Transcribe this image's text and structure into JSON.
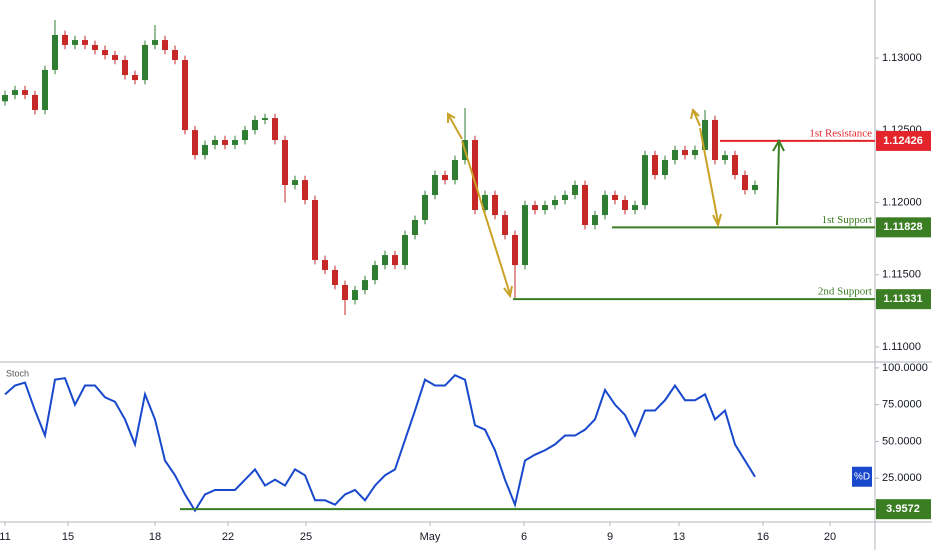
{
  "chart_data": [
    {
      "type": "candlestick",
      "xlim": [
        -0.5,
        87
      ],
      "ylim": [
        1.1091,
        1.13401
      ],
      "yticks": [
        {
          "value": 1.11,
          "label": "1.11000"
        },
        {
          "value": 1.115,
          "label": "1.11500"
        },
        {
          "value": 1.12,
          "label": "1.12000"
        },
        {
          "value": 1.125,
          "label": "1.12500"
        },
        {
          "value": 1.13,
          "label": "1.13000"
        }
      ],
      "up_color": "#2e7d32",
      "down_color": "#c62828",
      "open": [
        1.127,
        1.12744,
        1.12778,
        1.12744,
        1.1264,
        1.12917,
        1.13159,
        1.1309,
        1.13124,
        1.1309,
        1.13055,
        1.1302,
        1.12986,
        1.12882,
        1.12847,
        1.1309,
        1.13124,
        1.13055,
        1.12986,
        1.12501,
        1.12328,
        1.12398,
        1.12432,
        1.12398,
        1.12432,
        1.12501,
        1.12571,
        1.12584,
        1.12432,
        1.12121,
        1.12155,
        1.12017,
        1.11602,
        1.11533,
        1.11429,
        1.11325,
        1.11394,
        1.11463,
        1.11567,
        1.11636,
        1.11567,
        1.11775,
        1.11879,
        1.12052,
        1.1219,
        1.12155,
        1.12294,
        1.12432,
        1.11948,
        1.12052,
        1.11913,
        1.11775,
        1.11567,
        1.11982,
        1.11948,
        1.11982,
        1.12017,
        1.12052,
        1.12121,
        1.11844,
        1.11913,
        1.12052,
        1.12017,
        1.11948,
        1.11982,
        1.12328,
        1.1219,
        1.12294,
        1.12363,
        1.12328,
        1.12363,
        1.12571,
        1.12294,
        1.12328,
        1.1219,
        1.12086
      ],
      "high": [
        1.12774,
        1.12808,
        1.12808,
        1.12774,
        1.12947,
        1.13263,
        1.13189,
        1.13154,
        1.13154,
        1.1312,
        1.13085,
        1.1305,
        1.13016,
        1.12912,
        1.1312,
        1.13228,
        1.13154,
        1.13085,
        1.13016,
        1.12531,
        1.12428,
        1.12462,
        1.12462,
        1.12462,
        1.12531,
        1.12601,
        1.12614,
        1.12614,
        1.12462,
        1.12185,
        1.12185,
        1.12047,
        1.11632,
        1.11563,
        1.11459,
        1.11424,
        1.11493,
        1.11597,
        1.11666,
        1.11666,
        1.11805,
        1.11909,
        1.12082,
        1.1222,
        1.1222,
        1.12324,
        1.12654,
        1.12462,
        1.12082,
        1.12082,
        1.11943,
        1.11805,
        1.12012,
        1.12012,
        1.12012,
        1.12047,
        1.12082,
        1.12151,
        1.12151,
        1.11943,
        1.12082,
        1.12082,
        1.12047,
        1.12012,
        1.12358,
        1.12358,
        1.12324,
        1.12393,
        1.12393,
        1.12393,
        1.1264,
        1.12601,
        1.12358,
        1.12358,
        1.1222,
        1.12151
      ],
      "low": [
        1.1267,
        1.12714,
        1.12714,
        1.1261,
        1.1261,
        1.12887,
        1.1306,
        1.1306,
        1.1306,
        1.13025,
        1.1299,
        1.12956,
        1.12852,
        1.12817,
        1.12817,
        1.1306,
        1.13025,
        1.12956,
        1.12471,
        1.12298,
        1.12298,
        1.12368,
        1.12368,
        1.12368,
        1.12402,
        1.12471,
        1.12541,
        1.12402,
        1.12,
        1.12091,
        1.11987,
        1.11572,
        1.11503,
        1.11399,
        1.11221,
        1.11295,
        1.11364,
        1.11433,
        1.11537,
        1.11537,
        1.11537,
        1.11745,
        1.11849,
        1.12022,
        1.12125,
        1.12125,
        1.12264,
        1.11918,
        1.11918,
        1.11883,
        1.11745,
        1.1134,
        1.11537,
        1.11918,
        1.11918,
        1.11952,
        1.11987,
        1.12022,
        1.11814,
        1.11814,
        1.11883,
        1.11987,
        1.11918,
        1.11918,
        1.11952,
        1.1216,
        1.1216,
        1.12264,
        1.12298,
        1.12298,
        1.12333,
        1.12264,
        1.12264,
        1.1216,
        1.12056,
        1.12056
      ],
      "close": [
        1.12744,
        1.12778,
        1.12744,
        1.1264,
        1.12917,
        1.13159,
        1.1309,
        1.13124,
        1.1309,
        1.13055,
        1.1302,
        1.12986,
        1.12882,
        1.12847,
        1.1309,
        1.13124,
        1.13055,
        1.12986,
        1.12501,
        1.12328,
        1.12398,
        1.12432,
        1.12398,
        1.12432,
        1.12501,
        1.12571,
        1.12584,
        1.12432,
        1.12121,
        1.12155,
        1.12017,
        1.11602,
        1.11533,
        1.11429,
        1.11325,
        1.11394,
        1.11463,
        1.11567,
        1.11636,
        1.11567,
        1.11775,
        1.11879,
        1.12052,
        1.1219,
        1.12155,
        1.12294,
        1.12432,
        1.11948,
        1.12052,
        1.11913,
        1.11775,
        1.11567,
        1.11982,
        1.11948,
        1.11982,
        1.12017,
        1.12052,
        1.12121,
        1.11844,
        1.11913,
        1.12052,
        1.12017,
        1.11948,
        1.11982,
        1.12328,
        1.1219,
        1.12294,
        1.12363,
        1.12328,
        1.12363,
        1.12571,
        1.12294,
        1.12328,
        1.1219,
        1.12086,
        1.12121
      ],
      "levels": [
        {
          "name": "1st Resistance",
          "value": 1.12426,
          "color": "#e3242b",
          "x_start": 71.5
        },
        {
          "name": "1st Support",
          "value": 1.11828,
          "color": "#3a7d22",
          "x_start": 60.7
        },
        {
          "name": "2nd Support",
          "value": 1.11331,
          "color": "#3a7d22",
          "x_start": 50.8
        }
      ]
    },
    {
      "type": "line",
      "title": "Stoch",
      "xlim": [
        -0.5,
        87
      ],
      "ylim": [
        -3.4,
        104
      ],
      "yticks": [
        {
          "value": 25,
          "label": "25.0000"
        },
        {
          "value": 50,
          "label": "50.0000"
        },
        {
          "value": 75,
          "label": "75.0000"
        },
        {
          "value": 100,
          "label": "100.0000"
        }
      ],
      "xticks": [
        {
          "value": 0,
          "label": "11"
        },
        {
          "value": 6.3,
          "label": "15"
        },
        {
          "value": 15,
          "label": "18"
        },
        {
          "value": 22.3,
          "label": "22"
        },
        {
          "value": 30.1,
          "label": "25"
        },
        {
          "value": 42.5,
          "label": "May"
        },
        {
          "value": 51.9,
          "label": "6"
        },
        {
          "value": 60.5,
          "label": "9"
        },
        {
          "value": 67.4,
          "label": "13"
        },
        {
          "value": 75.8,
          "label": "16"
        },
        {
          "value": 82.5,
          "label": "20"
        }
      ],
      "series": [
        {
          "name": "%D",
          "color": "#1848cc",
          "values": [
            82,
            88,
            90,
            71,
            54,
            92,
            93,
            75,
            88,
            88,
            80,
            77,
            65,
            48,
            82,
            65,
            37,
            27,
            14,
            3,
            14,
            17,
            17,
            17,
            24,
            31,
            20,
            24,
            20,
            31,
            27,
            10,
            10,
            7,
            14,
            17,
            10,
            20,
            27,
            31,
            51,
            71,
            92,
            88,
            88,
            95,
            92,
            61,
            58,
            44,
            24,
            7,
            37,
            41,
            44,
            48,
            54,
            54,
            58,
            65,
            85,
            75,
            68,
            54,
            71,
            71,
            78,
            88,
            78,
            78,
            82,
            65,
            71,
            48,
            37,
            26
          ]
        }
      ],
      "levels": [
        {
          "value": 3.9572,
          "color": "#3a7d22",
          "x_start": 17.5
        }
      ]
    }
  ]
}
